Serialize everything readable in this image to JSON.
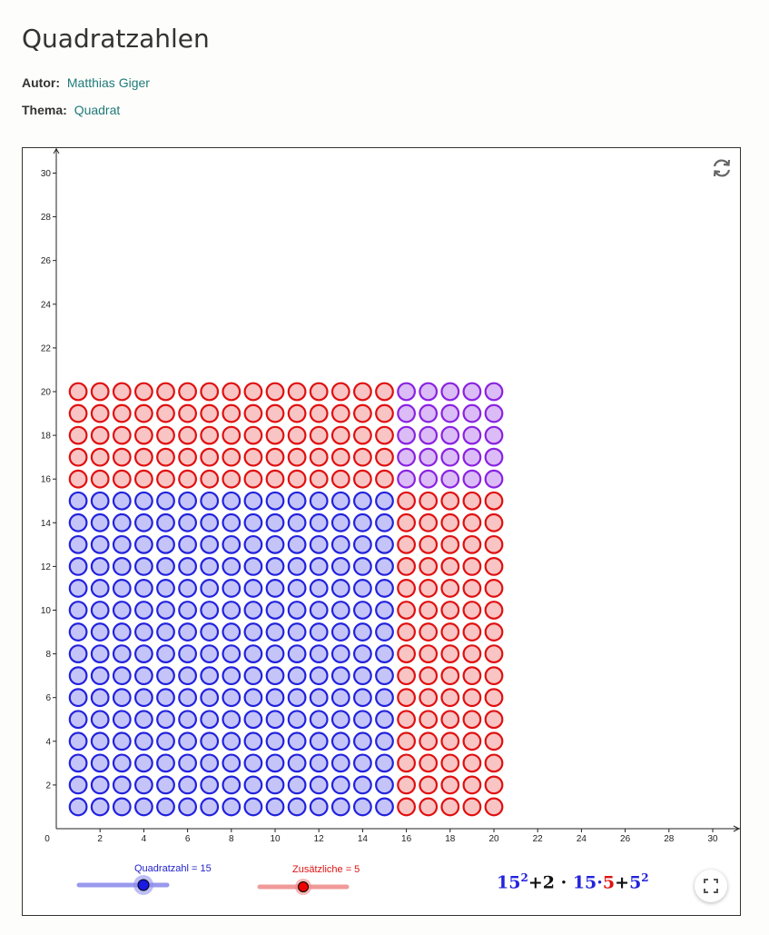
{
  "header": {
    "title": "Quadratzahlen",
    "author_label": "Autor:",
    "author_name": "Matthias Giger",
    "topic_label": "Thema:",
    "topic_name": "Quadrat"
  },
  "graph": {
    "x_ticks": [
      "0",
      "2",
      "4",
      "6",
      "8",
      "10",
      "12",
      "14",
      "16",
      "18",
      "20",
      "22",
      "24",
      "26",
      "28",
      "30"
    ],
    "y_ticks": [
      "2",
      "4",
      "6",
      "8",
      "10",
      "12",
      "14",
      "16",
      "18",
      "20",
      "22",
      "24",
      "26",
      "28",
      "30"
    ],
    "x_range": [
      0,
      31
    ],
    "y_range": [
      0,
      31
    ]
  },
  "dots": {
    "quadratzahl": 15,
    "zusaetzliche": 5,
    "colors": {
      "blue_fill": "#c4c4f8",
      "blue_stroke": "#2222dd",
      "red_fill": "#f8c4c4",
      "red_stroke": "#e01010",
      "purple_fill": "#dbbcf6",
      "purple_stroke": "#8a22e0"
    }
  },
  "sliders": {
    "quadratzahl": {
      "label": "Quadratzahl = 15",
      "value": 15,
      "color": "#2222cc"
    },
    "zusaetzliche": {
      "label": "Zusätzliche = 5",
      "value": 5,
      "color": "#dd1111"
    }
  },
  "formula": {
    "a": "15",
    "a_exp": "2",
    "plus1": "+",
    "two": "2",
    "dot1": " · ",
    "b": "15",
    "dot2": "·",
    "c": "5",
    "plus2": "+",
    "d": "5",
    "d_exp": "2"
  },
  "icons": {
    "reset": "reset-icon",
    "fullscreen": "fullscreen-icon"
  }
}
